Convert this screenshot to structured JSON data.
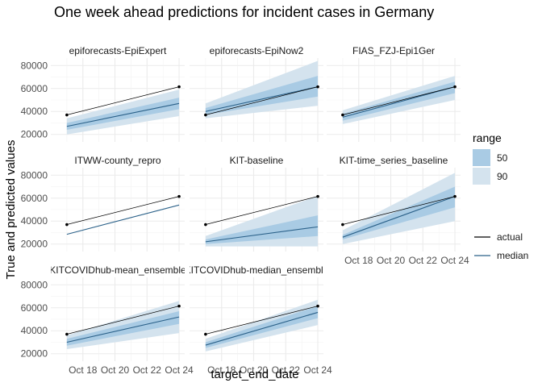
{
  "chart_data": {
    "type": "line",
    "title": "One week ahead predictions for incident cases in Germany",
    "xlabel": "target_end_date",
    "ylabel": "True and predicted values",
    "x": [
      "2020-10-17",
      "2020-10-24"
    ],
    "x_ticks": [
      "Oct 18",
      "Oct 20",
      "Oct 22",
      "Oct 24"
    ],
    "y_ticks": [
      "20000",
      "40000",
      "60000",
      "80000"
    ],
    "ylim": [
      15000,
      87000
    ],
    "grid": true,
    "legend": {
      "range_title": "range",
      "range_items": [
        {
          "label": "50",
          "color": "#a9cbe4"
        },
        {
          "label": "90",
          "color": "#d4e3ee"
        }
      ],
      "line_items": [
        {
          "label": "actual",
          "color": "#000000"
        },
        {
          "label": "median",
          "color": "#2b6189"
        }
      ]
    },
    "colors": {
      "pi90": "#d4e3ee",
      "pi50": "#a9cbe4",
      "median": "#2b6189",
      "actual": "#000000"
    },
    "actual": [
      37000,
      61500
    ],
    "panels": [
      {
        "title": "epiforecasts-EpiExpert",
        "median": [
          27000,
          47000
        ],
        "q50": [
          [
            24000,
            30000
          ],
          [
            42000,
            52000
          ]
        ],
        "q90": [
          [
            20000,
            34000
          ],
          [
            36000,
            59000
          ]
        ]
      },
      {
        "title": "epiforecasts-EpiNow2",
        "median": [
          40000,
          61500
        ],
        "q50": [
          [
            37000,
            43000
          ],
          [
            53000,
            71000
          ]
        ],
        "q90": [
          [
            34000,
            47000
          ],
          [
            45000,
            84000
          ]
        ]
      },
      {
        "title": "FIAS_FZJ-Epi1Ger",
        "median": [
          35000,
          61500
        ],
        "q50": [
          [
            32000,
            38000
          ],
          [
            56000,
            66000
          ]
        ],
        "q90": [
          [
            29000,
            41000
          ],
          [
            50000,
            71000
          ]
        ]
      },
      {
        "title": "ITWW-county_repro",
        "median": [
          28500,
          54000
        ],
        "q50": [
          [
            28500,
            28500
          ],
          [
            54000,
            54000
          ]
        ],
        "q90": [
          [
            28500,
            28500
          ],
          [
            54000,
            54000
          ]
        ]
      },
      {
        "title": "KIT-baseline",
        "median": [
          22000,
          35000
        ],
        "q50": [
          [
            20000,
            24000
          ],
          [
            27000,
            45000
          ]
        ],
        "q90": [
          [
            18000,
            27000
          ],
          [
            18000,
            62000
          ]
        ]
      },
      {
        "title": "KIT-time_series_baseline",
        "median": [
          26000,
          61500
        ],
        "q50": [
          [
            24000,
            28000
          ],
          [
            52000,
            70000
          ]
        ],
        "q90": [
          [
            20000,
            32000
          ],
          [
            40000,
            82000
          ]
        ]
      },
      {
        "title": "KITCOVIDhub-mean_ensemble",
        "median": [
          30000,
          52000
        ],
        "q50": [
          [
            27000,
            33000
          ],
          [
            46000,
            57000
          ]
        ],
        "q90": [
          [
            24000,
            36000
          ],
          [
            38000,
            66000
          ]
        ]
      },
      {
        "title": "KITCOVIDhub-median_ensemble",
        "median": [
          27500,
          56000
        ],
        "q50": [
          [
            25000,
            30000
          ],
          [
            51000,
            61500
          ]
        ],
        "q90": [
          [
            22000,
            33000
          ],
          [
            45000,
            67000
          ]
        ]
      }
    ]
  }
}
